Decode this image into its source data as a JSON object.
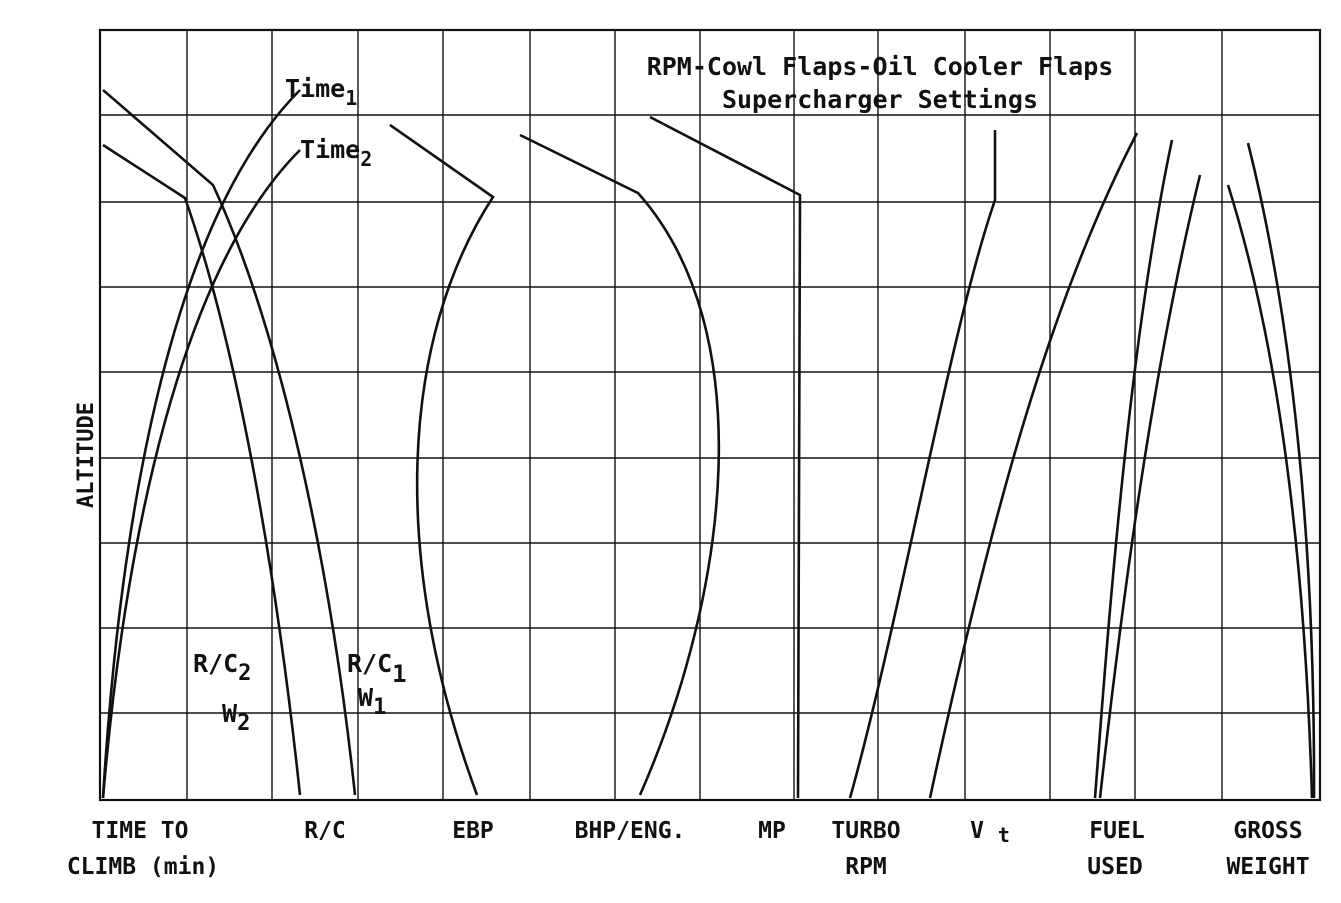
{
  "chart_data": {
    "type": "line",
    "title": "RPM-Cowl Flaps-Oil Cooler Flaps",
    "subtitle": "Supercharger Settings",
    "ylabel": "ALTITUDE",
    "x_columns": [
      {
        "line1": "TIME TO",
        "line2": "CLIMB (min)"
      },
      {
        "line1": "R/C",
        "line2": ""
      },
      {
        "line1": "EBP",
        "line2": ""
      },
      {
        "line1": "BHP/ENG.",
        "line2": ""
      },
      {
        "line1": "MP",
        "line2": ""
      },
      {
        "line1": "TURBO",
        "line2": "RPM"
      },
      {
        "line1": "Vt",
        "line2": ""
      },
      {
        "line1": "FUEL",
        "line2": "USED"
      },
      {
        "line1": "GROSS",
        "line2": "WEIGHT"
      }
    ],
    "curve_labels": {
      "time1": "Time1",
      "time2": "Time2",
      "rc2": "R/C2",
      "w2": "W2",
      "rc1": "R/C1",
      "w1": "W1"
    },
    "grid": true,
    "numeric_scale": "none"
  }
}
